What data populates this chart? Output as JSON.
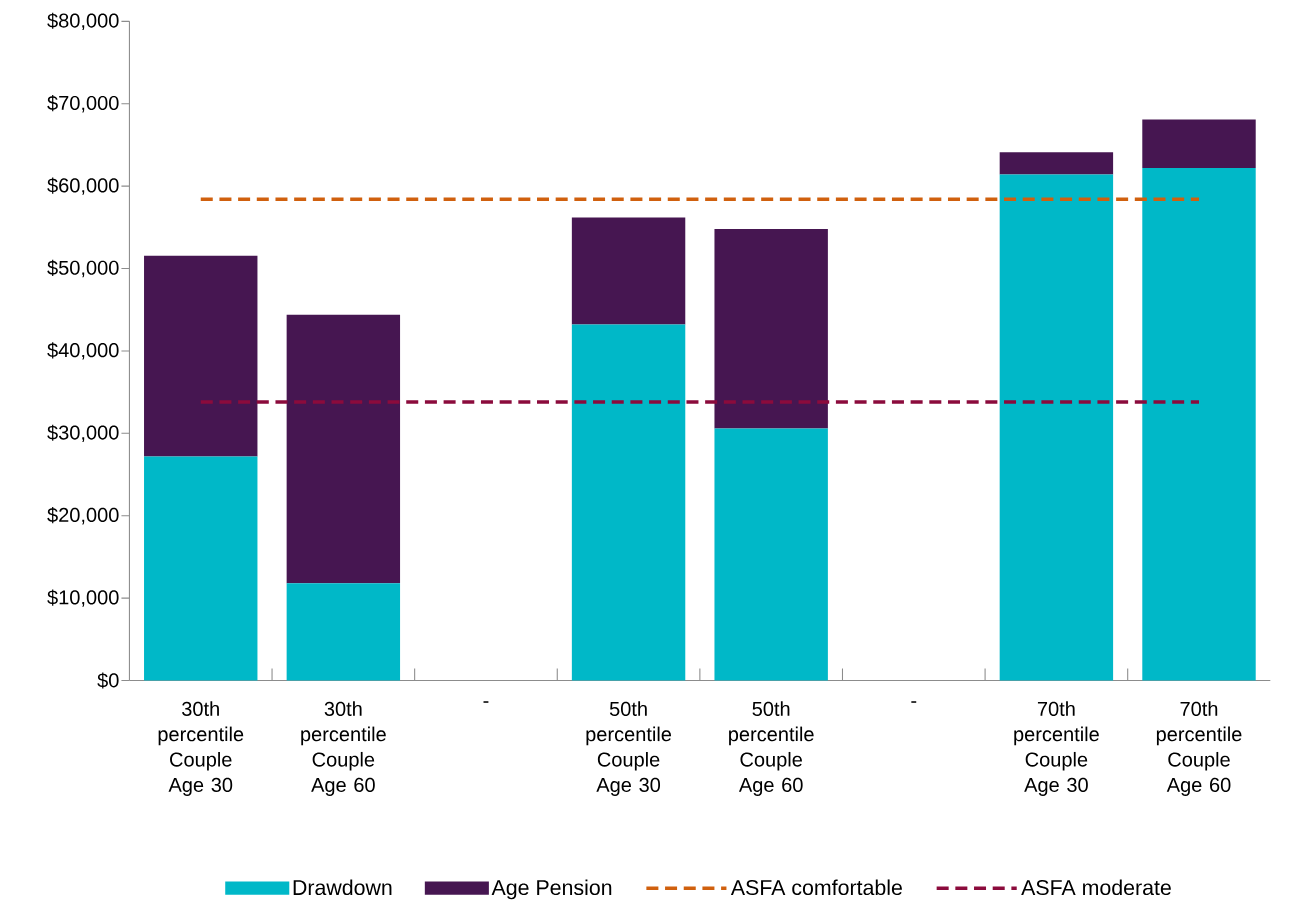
{
  "chart_data": {
    "type": "bar",
    "stacked": true,
    "categories": [
      "30th percentile Couple Age 30",
      "30th percentile Couple Age 60",
      "-",
      "50th percentile Couple Age 30",
      "50th percentile Couple Age 60",
      "-",
      "70th percentile Couple Age 30",
      "70th percentile Couple Age 60"
    ],
    "series": [
      {
        "name": "Drawdown",
        "color": "#00b8c8",
        "values": [
          27200,
          11800,
          null,
          43200,
          30600,
          null,
          61400,
          62200
        ]
      },
      {
        "name": "Age Pension",
        "color": "#461651",
        "values": [
          24350,
          32600,
          null,
          13000,
          24200,
          null,
          2700,
          5900
        ]
      },
      {
        "name": "ASFA comfortable",
        "type": "line",
        "line_style": "dashed",
        "color": "#d0600e",
        "values": [
          58400,
          58400,
          58400,
          58400,
          58400,
          58400,
          58400,
          58400
        ]
      },
      {
        "name": "ASFA moderate",
        "type": "line",
        "line_style": "dashed",
        "color": "#8b0b3c",
        "values": [
          33800,
          33800,
          33800,
          33800,
          33800,
          33800,
          33800,
          33800
        ]
      }
    ],
    "ylim": [
      0,
      80000
    ],
    "yticks": [
      {
        "value": 0,
        "label": "$0"
      },
      {
        "value": 10000,
        "label": "$10,000"
      },
      {
        "value": 20000,
        "label": "$20,000"
      },
      {
        "value": 30000,
        "label": "$30,000"
      },
      {
        "value": 40000,
        "label": "$40,000"
      },
      {
        "value": 50000,
        "label": "$50,000"
      },
      {
        "value": 60000,
        "label": "$60,000"
      },
      {
        "value": 70000,
        "label": "$70,000"
      },
      {
        "value": 80000,
        "label": "$80,000"
      }
    ],
    "grid": false,
    "legend": "bottom",
    "marker": "none"
  }
}
